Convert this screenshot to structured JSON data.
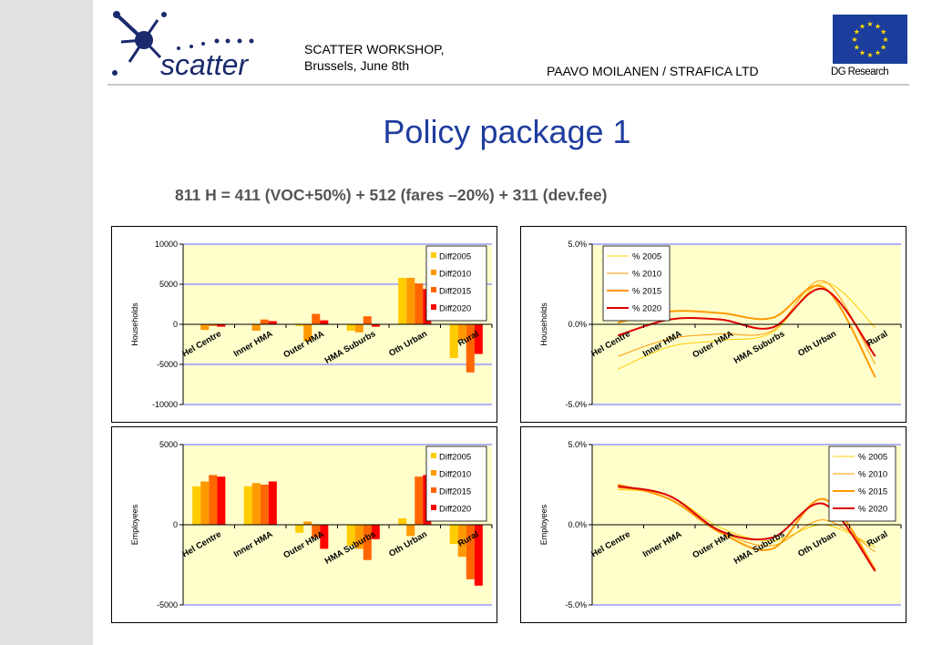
{
  "header": {
    "logo_text": "scatter",
    "workshop_line1": "SCATTER  WORKSHOP,",
    "workshop_line2": "Brussels, June 8th",
    "author": "PAAVO MOILANEN / STRAFICA LTD",
    "eu_label": "DG Research"
  },
  "title": "Policy package 1",
  "formula": "811 H = 411 (VOC+50%) + 512 (fares –20%) + 311 (dev.fee)",
  "colors": {
    "plot_bg": "#ffffcc",
    "grid": "#9999ff",
    "sidebar": "#e2e2e2",
    "title": "#1f3d9e",
    "eu_blue": "#1c3d9b",
    "eu_star": "#ffdd00"
  },
  "chart_data": [
    {
      "type": "bar",
      "categories": [
        "Hel Centre",
        "Inner HMA",
        "Outer HMA",
        "HMA Suburbs",
        "Oth Urban",
        "Rural"
      ],
      "ylabel": "Households",
      "ylim": [
        -10000,
        10000
      ],
      "yticks": [
        10000,
        5000,
        0,
        -5000,
        -10000
      ],
      "ytick_labels": [
        "10000",
        "5000",
        "0",
        "-5000",
        "-10000"
      ],
      "grid": true,
      "legend": "top-right",
      "series": [
        {
          "name": "Diff2005",
          "color": "#ffcc00",
          "values": [
            0,
            0,
            -200,
            -800,
            5800,
            -4200
          ]
        },
        {
          "name": "Diff2010",
          "color": "#ff9900",
          "values": [
            -700,
            -800,
            -2100,
            -1000,
            5800,
            -2000
          ]
        },
        {
          "name": "Diff2015",
          "color": "#ff6600",
          "values": [
            -200,
            600,
            1300,
            1000,
            5100,
            -6000
          ]
        },
        {
          "name": "Diff2020",
          "color": "#ff0000",
          "values": [
            -300,
            400,
            500,
            -300,
            4400,
            -3700
          ]
        }
      ]
    },
    {
      "type": "line",
      "categories": [
        "Hel Centre",
        "Inner HMA",
        "Outer HMA",
        "HMA Suburbs",
        "Oth Urban",
        "Rural"
      ],
      "ylabel": "Households",
      "ylim": [
        -5,
        5
      ],
      "yticks": [
        5,
        0,
        -5
      ],
      "ytick_labels": [
        "5.0%",
        "0.0%",
        "-5.0%"
      ],
      "grid": true,
      "legend": "top-left",
      "series": [
        {
          "name": "% 2005",
          "color": "#ffcc00",
          "width": 1,
          "values": [
            -2.8,
            -1.4,
            -1.0,
            -0.5,
            2.6,
            -0.2
          ]
        },
        {
          "name": "% 2010",
          "color": "#ff9900",
          "width": 1,
          "values": [
            -2.0,
            -0.9,
            -0.6,
            -0.4,
            2.7,
            -2.5
          ]
        },
        {
          "name": "% 2015",
          "color": "#ff9900",
          "width": 2,
          "values": [
            0.1,
            0.8,
            0.7,
            0.4,
            2.3,
            -3.3
          ]
        },
        {
          "name": "% 2020",
          "color": "#dd0000",
          "width": 2,
          "values": [
            -0.7,
            0.3,
            0.3,
            -0.2,
            2.2,
            -2.0
          ]
        }
      ]
    },
    {
      "type": "bar",
      "categories": [
        "Hel Centre",
        "Inner HMA",
        "Outer HMA",
        "HMA Suburbs",
        "Oth Urban",
        "Rural"
      ],
      "ylabel": "Employees",
      "ylim": [
        -5000,
        5000
      ],
      "yticks": [
        5000,
        0,
        -5000
      ],
      "ytick_labels": [
        "5000",
        "0",
        "-5000"
      ],
      "grid": true,
      "legend": "top-right",
      "series": [
        {
          "name": "Diff2005",
          "color": "#ffcc00",
          "values": [
            2400,
            2400,
            -500,
            -1300,
            400,
            -1200
          ]
        },
        {
          "name": "Diff2010",
          "color": "#ff9900",
          "values": [
            2700,
            2600,
            200,
            -1500,
            -700,
            -2000
          ]
        },
        {
          "name": "Diff2015",
          "color": "#ff6600",
          "values": [
            3100,
            2500,
            -800,
            -2200,
            3000,
            -3400
          ]
        },
        {
          "name": "Diff2020",
          "color": "#ff0000",
          "values": [
            3000,
            2700,
            -1500,
            -900,
            3100,
            -3800
          ]
        }
      ]
    },
    {
      "type": "line",
      "categories": [
        "Hel Centre",
        "Inner HMA",
        "Outer HMA",
        "HMA Suburbs",
        "Oth Urban",
        "Rural"
      ],
      "ylabel": "Employees",
      "ylim": [
        -5,
        5
      ],
      "yticks": [
        5,
        0,
        -5
      ],
      "ytick_labels": [
        "5.0%",
        "0.0%",
        "-5.0%"
      ],
      "grid": true,
      "legend": "top-right",
      "series": [
        {
          "name": "% 2005",
          "color": "#ffcc00",
          "width": 1,
          "values": [
            2.2,
            1.8,
            -0.2,
            -1.0,
            0.0,
            -1.4
          ]
        },
        {
          "name": "% 2010",
          "color": "#ff9900",
          "width": 1,
          "values": [
            2.3,
            1.8,
            -0.4,
            -1.3,
            0.3,
            -1.7
          ]
        },
        {
          "name": "% 2015",
          "color": "#ff9900",
          "width": 2,
          "values": [
            2.5,
            1.6,
            -0.5,
            -1.5,
            1.6,
            -2.8
          ]
        },
        {
          "name": "% 2020",
          "color": "#dd0000",
          "width": 2,
          "values": [
            2.4,
            1.8,
            -0.4,
            -0.8,
            1.3,
            -2.9
          ]
        }
      ]
    }
  ]
}
